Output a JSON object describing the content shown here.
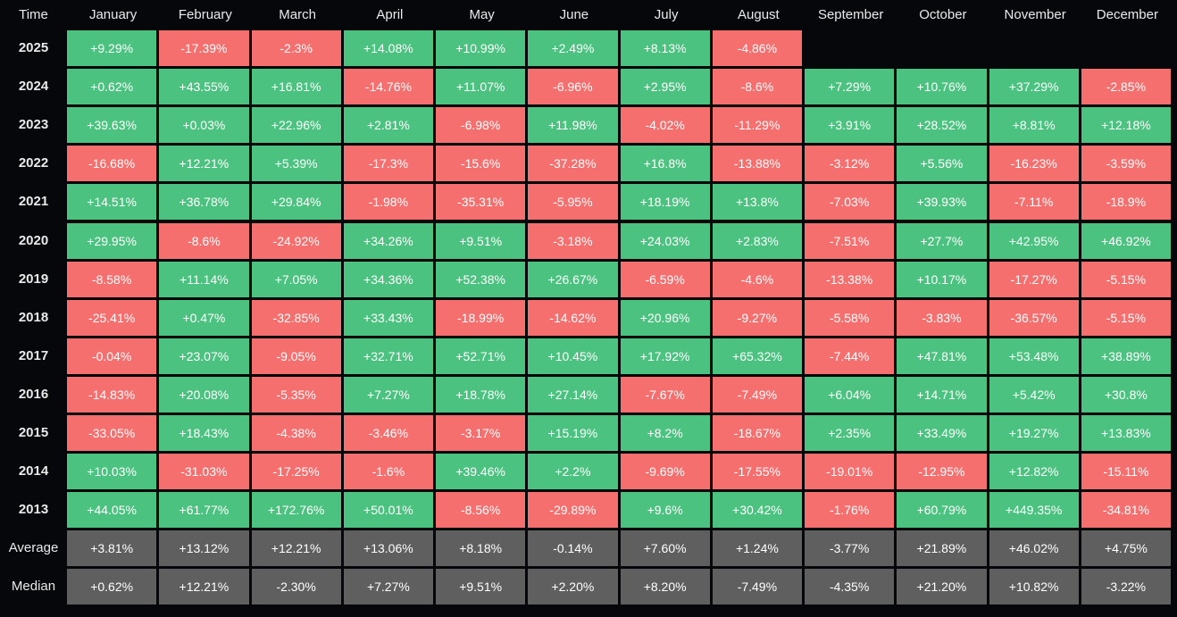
{
  "chart_data": {
    "type": "heatmap",
    "corner_label": "Time",
    "columns": [
      "January",
      "February",
      "March",
      "April",
      "May",
      "June",
      "July",
      "August",
      "September",
      "October",
      "November",
      "December"
    ],
    "rows": [
      {
        "label": "2025",
        "kind": "year",
        "values": [
          "+9.29%",
          "-17.39%",
          "-2.3%",
          "+14.08%",
          "+10.99%",
          "+2.49%",
          "+8.13%",
          "-4.86%",
          null,
          null,
          null,
          null
        ]
      },
      {
        "label": "2024",
        "kind": "year",
        "values": [
          "+0.62%",
          "+43.55%",
          "+16.81%",
          "-14.76%",
          "+11.07%",
          "-6.96%",
          "+2.95%",
          "-8.6%",
          "+7.29%",
          "+10.76%",
          "+37.29%",
          "-2.85%"
        ]
      },
      {
        "label": "2023",
        "kind": "year",
        "values": [
          "+39.63%",
          "+0.03%",
          "+22.96%",
          "+2.81%",
          "-6.98%",
          "+11.98%",
          "-4.02%",
          "-11.29%",
          "+3.91%",
          "+28.52%",
          "+8.81%",
          "+12.18%"
        ]
      },
      {
        "label": "2022",
        "kind": "year",
        "values": [
          "-16.68%",
          "+12.21%",
          "+5.39%",
          "-17.3%",
          "-15.6%",
          "-37.28%",
          "+16.8%",
          "-13.88%",
          "-3.12%",
          "+5.56%",
          "-16.23%",
          "-3.59%"
        ]
      },
      {
        "label": "2021",
        "kind": "year",
        "values": [
          "+14.51%",
          "+36.78%",
          "+29.84%",
          "-1.98%",
          "-35.31%",
          "-5.95%",
          "+18.19%",
          "+13.8%",
          "-7.03%",
          "+39.93%",
          "-7.11%",
          "-18.9%"
        ]
      },
      {
        "label": "2020",
        "kind": "year",
        "values": [
          "+29.95%",
          "-8.6%",
          "-24.92%",
          "+34.26%",
          "+9.51%",
          "-3.18%",
          "+24.03%",
          "+2.83%",
          "-7.51%",
          "+27.7%",
          "+42.95%",
          "+46.92%"
        ]
      },
      {
        "label": "2019",
        "kind": "year",
        "values": [
          "-8.58%",
          "+11.14%",
          "+7.05%",
          "+34.36%",
          "+52.38%",
          "+26.67%",
          "-6.59%",
          "-4.6%",
          "-13.38%",
          "+10.17%",
          "-17.27%",
          "-5.15%"
        ]
      },
      {
        "label": "2018",
        "kind": "year",
        "values": [
          "-25.41%",
          "+0.47%",
          "-32.85%",
          "+33.43%",
          "-18.99%",
          "-14.62%",
          "+20.96%",
          "-9.27%",
          "-5.58%",
          "-3.83%",
          "-36.57%",
          "-5.15%"
        ]
      },
      {
        "label": "2017",
        "kind": "year",
        "values": [
          "-0.04%",
          "+23.07%",
          "-9.05%",
          "+32.71%",
          "+52.71%",
          "+10.45%",
          "+17.92%",
          "+65.32%",
          "-7.44%",
          "+47.81%",
          "+53.48%",
          "+38.89%"
        ]
      },
      {
        "label": "2016",
        "kind": "year",
        "values": [
          "-14.83%",
          "+20.08%",
          "-5.35%",
          "+7.27%",
          "+18.78%",
          "+27.14%",
          "-7.67%",
          "-7.49%",
          "+6.04%",
          "+14.71%",
          "+5.42%",
          "+30.8%"
        ]
      },
      {
        "label": "2015",
        "kind": "year",
        "values": [
          "-33.05%",
          "+18.43%",
          "-4.38%",
          "-3.46%",
          "-3.17%",
          "+15.19%",
          "+8.2%",
          "-18.67%",
          "+2.35%",
          "+33.49%",
          "+19.27%",
          "+13.83%"
        ]
      },
      {
        "label": "2014",
        "kind": "year",
        "values": [
          "+10.03%",
          "-31.03%",
          "-17.25%",
          "-1.6%",
          "+39.46%",
          "+2.2%",
          "-9.69%",
          "-17.55%",
          "-19.01%",
          "-12.95%",
          "+12.82%",
          "-15.11%"
        ]
      },
      {
        "label": "2013",
        "kind": "year",
        "values": [
          "+44.05%",
          "+61.77%",
          "+172.76%",
          "+50.01%",
          "-8.56%",
          "-29.89%",
          "+9.6%",
          "+30.42%",
          "-1.76%",
          "+60.79%",
          "+449.35%",
          "-34.81%"
        ]
      },
      {
        "label": "Average",
        "kind": "summary",
        "values": [
          "+3.81%",
          "+13.12%",
          "+12.21%",
          "+13.06%",
          "+8.18%",
          "-0.14%",
          "+7.60%",
          "+1.24%",
          "-3.77%",
          "+21.89%",
          "+46.02%",
          "+4.75%"
        ]
      },
      {
        "label": "Median",
        "kind": "summary",
        "values": [
          "+0.62%",
          "+12.21%",
          "-2.30%",
          "+7.27%",
          "+9.51%",
          "+2.20%",
          "+8.20%",
          "-7.49%",
          "-4.35%",
          "+21.20%",
          "+10.82%",
          "-3.22%"
        ]
      }
    ],
    "colors": {
      "background": "#06070b",
      "positive": "#4bc27f",
      "negative": "#f56f6f",
      "summary": "#5f5f5f",
      "text": "#ffffff"
    }
  }
}
